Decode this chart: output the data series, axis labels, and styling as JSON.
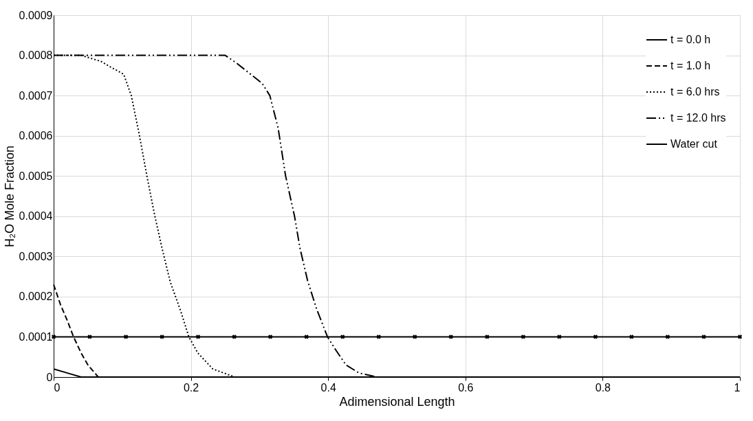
{
  "chart_data": {
    "type": "line",
    "xlabel": "Adimensional Length",
    "ylabel": "H₂O Mole Fraction",
    "xlim": [
      0,
      1
    ],
    "xticks": [
      0,
      0.2,
      0.4,
      0.6,
      0.8,
      1
    ],
    "ylim": [
      0,
      0.0009
    ],
    "yticks": [
      0,
      0.0001,
      0.0002,
      0.0003,
      0.0004,
      0.0005,
      0.0006,
      0.0007,
      0.0008,
      0.0009
    ],
    "grid": true,
    "legend": "top right",
    "series": [
      {
        "name": "t = 0.0 h",
        "color": "#000000",
        "line_style": "solid",
        "marker": "none",
        "x": [
          0,
          0.02,
          0.04,
          0.06,
          0.1,
          1
        ],
        "values": [
          2e-05,
          1e-05,
          0,
          0,
          0,
          0
        ]
      },
      {
        "name": "t = 1.0 h",
        "color": "#000000",
        "line_style": "dashed",
        "marker": "none",
        "x": [
          0,
          0.01,
          0.02,
          0.029,
          0.04,
          0.05,
          0.065,
          0.08
        ],
        "values": [
          0.00023,
          0.00018,
          0.00014,
          0.0001,
          6e-05,
          3e-05,
          0,
          0
        ]
      },
      {
        "name": "t = 6.0 hrs",
        "color": "#000000",
        "line_style": "dotted",
        "marker": "none",
        "x": [
          0,
          0.04,
          0.069,
          0.083,
          0.102,
          0.113,
          0.125,
          0.136,
          0.147,
          0.158,
          0.17,
          0.185,
          0.197,
          0.21,
          0.232,
          0.264,
          0.3
        ],
        "values": [
          0.0008,
          0.0008,
          0.000785,
          0.000771,
          0.000753,
          0.000701,
          0.000601,
          0.000499,
          0.000404,
          0.00032,
          0.000236,
          0.000165,
          0.0001,
          6e-05,
          2e-05,
          0,
          0
        ]
      },
      {
        "name": "t = 12.0 hrs",
        "color": "#000000",
        "line_style": "dashdotdot",
        "marker": "none",
        "x": [
          0,
          0.25,
          0.267,
          0.304,
          0.315,
          0.327,
          0.338,
          0.351,
          0.359,
          0.37,
          0.383,
          0.399,
          0.41,
          0.426,
          0.445,
          0.472,
          0.5
        ],
        "values": [
          0.0008,
          0.0008,
          0.00078,
          0.00073,
          0.0007,
          0.00062,
          0.0005,
          0.0004,
          0.00032,
          0.00024,
          0.00017,
          0.0001,
          7e-05,
          3e-05,
          1e-05,
          0,
          0
        ]
      },
      {
        "name": "Water cut",
        "color": "#000000",
        "line_style": "solid",
        "marker": "cross",
        "x": [
          0,
          0.0526,
          0.1053,
          0.1579,
          0.2105,
          0.2632,
          0.3158,
          0.3684,
          0.4211,
          0.4737,
          0.5263,
          0.5789,
          0.6316,
          0.6842,
          0.7368,
          0.7895,
          0.8421,
          0.8947,
          0.9474,
          1
        ],
        "values": [
          0.0001,
          0.0001,
          0.0001,
          0.0001,
          0.0001,
          0.0001,
          0.0001,
          0.0001,
          0.0001,
          0.0001,
          0.0001,
          0.0001,
          0.0001,
          0.0001,
          0.0001,
          0.0001,
          0.0001,
          0.0001,
          0.0001,
          0.0001
        ]
      }
    ]
  }
}
